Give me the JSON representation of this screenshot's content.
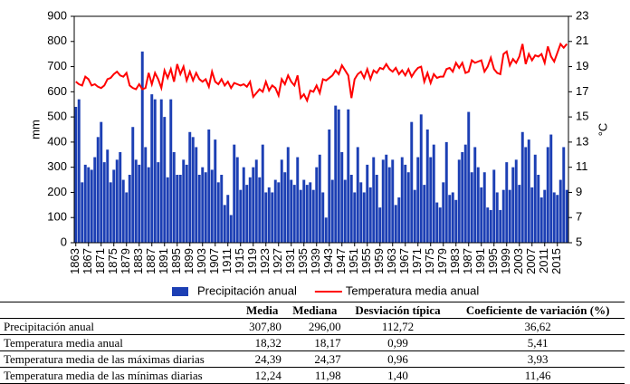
{
  "chart_data": {
    "type": "bar",
    "y_label": "mm",
    "y2_label": "°C",
    "ylim": [
      0,
      900
    ],
    "yticks": [
      0,
      100,
      200,
      300,
      400,
      500,
      600,
      700,
      800,
      900
    ],
    "y2lim": [
      5,
      23
    ],
    "y2ticks": [
      5,
      7,
      9,
      11,
      13,
      15,
      17,
      19,
      21,
      23
    ],
    "legend": "bottom",
    "categories": [
      "1863",
      null,
      null,
      null,
      "1867",
      null,
      null,
      null,
      "1871",
      null,
      null,
      null,
      "1875",
      null,
      null,
      null,
      "1879",
      null,
      null,
      null,
      "1883",
      null,
      null,
      null,
      "1887",
      null,
      null,
      null,
      "1891",
      null,
      null,
      null,
      "1895",
      null,
      null,
      null,
      "1899",
      null,
      null,
      null,
      "1903",
      null,
      null,
      null,
      "1907",
      null,
      null,
      null,
      "1911",
      null,
      null,
      null,
      "1915",
      null,
      null,
      null,
      "1919",
      null,
      null,
      null,
      "1923",
      null,
      null,
      null,
      "1927",
      null,
      null,
      null,
      "1931",
      null,
      null,
      null,
      "1935",
      null,
      null,
      null,
      "1939",
      null,
      null,
      null,
      "1943",
      null,
      null,
      null,
      "1947",
      null,
      null,
      null,
      "1951",
      null,
      null,
      null,
      "1955",
      null,
      null,
      null,
      "1959",
      null,
      null,
      null,
      "1963",
      null,
      null,
      null,
      "1967",
      null,
      null,
      null,
      "1971",
      null,
      null,
      null,
      "1975",
      null,
      null,
      null,
      "1979",
      null,
      null,
      null,
      "1983",
      null,
      null,
      null,
      "1987",
      null,
      null,
      null,
      "1991",
      null,
      null,
      null,
      "1995",
      null,
      null,
      null,
      "1999",
      null,
      null,
      null,
      "2003",
      null,
      null,
      null,
      "2007",
      null,
      null,
      null,
      "2011",
      null,
      null,
      null,
      "2015",
      null,
      null,
      null
    ],
    "series": [
      {
        "name": "Precipitación anual",
        "color": "#1c3fb4",
        "kind": "bar",
        "values": [
          540,
          570,
          240,
          310,
          300,
          290,
          340,
          420,
          480,
          320,
          370,
          240,
          290,
          330,
          360,
          250,
          200,
          270,
          460,
          330,
          310,
          760,
          380,
          300,
          590,
          570,
          320,
          570,
          500,
          260,
          570,
          360,
          270,
          270,
          330,
          310,
          440,
          420,
          380,
          270,
          300,
          280,
          450,
          290,
          410,
          240,
          270,
          150,
          190,
          110,
          390,
          340,
          210,
          300,
          230,
          260,
          300,
          330,
          260,
          390,
          200,
          220,
          200,
          250,
          240,
          330,
          280,
          380,
          250,
          230,
          340,
          210,
          250,
          230,
          240,
          210,
          300,
          350,
          200,
          100,
          450,
          250,
          545,
          530,
          360,
          250,
          530,
          270,
          200,
          380,
          240,
          200,
          310,
          220,
          340,
          270,
          140,
          330,
          350,
          300,
          330,
          150,
          180,
          340,
          310,
          280,
          480,
          210,
          340,
          510,
          230,
          450,
          340,
          390,
          160,
          140,
          240,
          400,
          190,
          200,
          170,
          330,
          360,
          390,
          520,
          280,
          380,
          300,
          220,
          280,
          140,
          130,
          290,
          200,
          130,
          210,
          320,
          210,
          300,
          330,
          230,
          440,
          380,
          410,
          220,
          350,
          270,
          180,
          210,
          380,
          430,
          200,
          190,
          250,
          380,
          210
        ]
      },
      {
        "name": "Temperatura media anual",
        "color": "#ff0000",
        "kind": "line",
        "axis": "y2",
        "values": [
          17.8,
          17.6,
          17.5,
          18.2,
          18.0,
          17.5,
          17.6,
          17.4,
          17.3,
          17.5,
          18.0,
          18.1,
          18.4,
          18.6,
          18.3,
          18.2,
          18.5,
          17.5,
          17.3,
          17.2,
          17.6,
          17.2,
          17.3,
          18.5,
          17.6,
          18.5,
          18.0,
          17.3,
          18.7,
          18.1,
          18.8,
          17.8,
          19.2,
          18.4,
          19.0,
          17.9,
          18.6,
          17.9,
          18.5,
          18.0,
          17.8,
          18.0,
          17.4,
          18.6,
          17.8,
          17.6,
          18.0,
          17.5,
          17.8,
          17.3,
          17.7,
          17.6,
          17.5,
          17.6,
          17.4,
          17.8,
          16.6,
          16.9,
          17.2,
          17.0,
          17.8,
          17.1,
          17.5,
          17.3,
          16.7,
          18.0,
          17.6,
          18.3,
          17.8,
          17.5,
          18.3,
          16.5,
          16.8,
          16.3,
          17.1,
          17.0,
          17.5,
          16.9,
          18.0,
          17.9,
          18.1,
          18.3,
          18.7,
          18.4,
          19.1,
          18.7,
          18.3,
          16.5,
          18.0,
          18.4,
          18.6,
          18.1,
          18.8,
          18.0,
          18.7,
          18.5,
          18.9,
          18.8,
          19.2,
          18.8,
          18.6,
          18.9,
          18.4,
          18.7,
          18.3,
          18.8,
          18.2,
          18.6,
          18.9,
          19.0,
          17.8,
          18.5,
          17.7,
          18.4,
          18.1,
          18.2,
          18.2,
          18.8,
          18.9,
          18.6,
          19.3,
          18.9,
          19.3,
          18.5,
          18.6,
          19.5,
          19.3,
          19.4,
          19.5,
          18.6,
          19.0,
          19.7,
          18.8,
          18.5,
          18.4,
          20.0,
          20.2,
          19.1,
          19.6,
          19.3,
          19.8,
          20.8,
          19.2,
          20.0,
          19.5,
          19.9,
          19.8,
          20.0,
          19.3,
          20.6,
          19.8,
          19.4,
          20.1,
          20.8,
          20.5,
          20.8
        ]
      }
    ]
  },
  "table": {
    "header": [
      "Media",
      "Mediana",
      "Desviación típica",
      "Coeficiente de variación (%)"
    ],
    "rows": [
      [
        "Precipitación anual",
        "307,80",
        "296,00",
        "112,72",
        "36,62"
      ],
      [
        "Temperatura media anual",
        "18,32",
        "18,17",
        "0,99",
        "5,41"
      ],
      [
        "Temperatura media de las máximas diarias",
        "24,39",
        "24,37",
        "0,96",
        "3,93"
      ],
      [
        "Temperatura media de las mínimas diarias",
        "12,24",
        "11,98",
        "1,40",
        "11,46"
      ]
    ]
  }
}
